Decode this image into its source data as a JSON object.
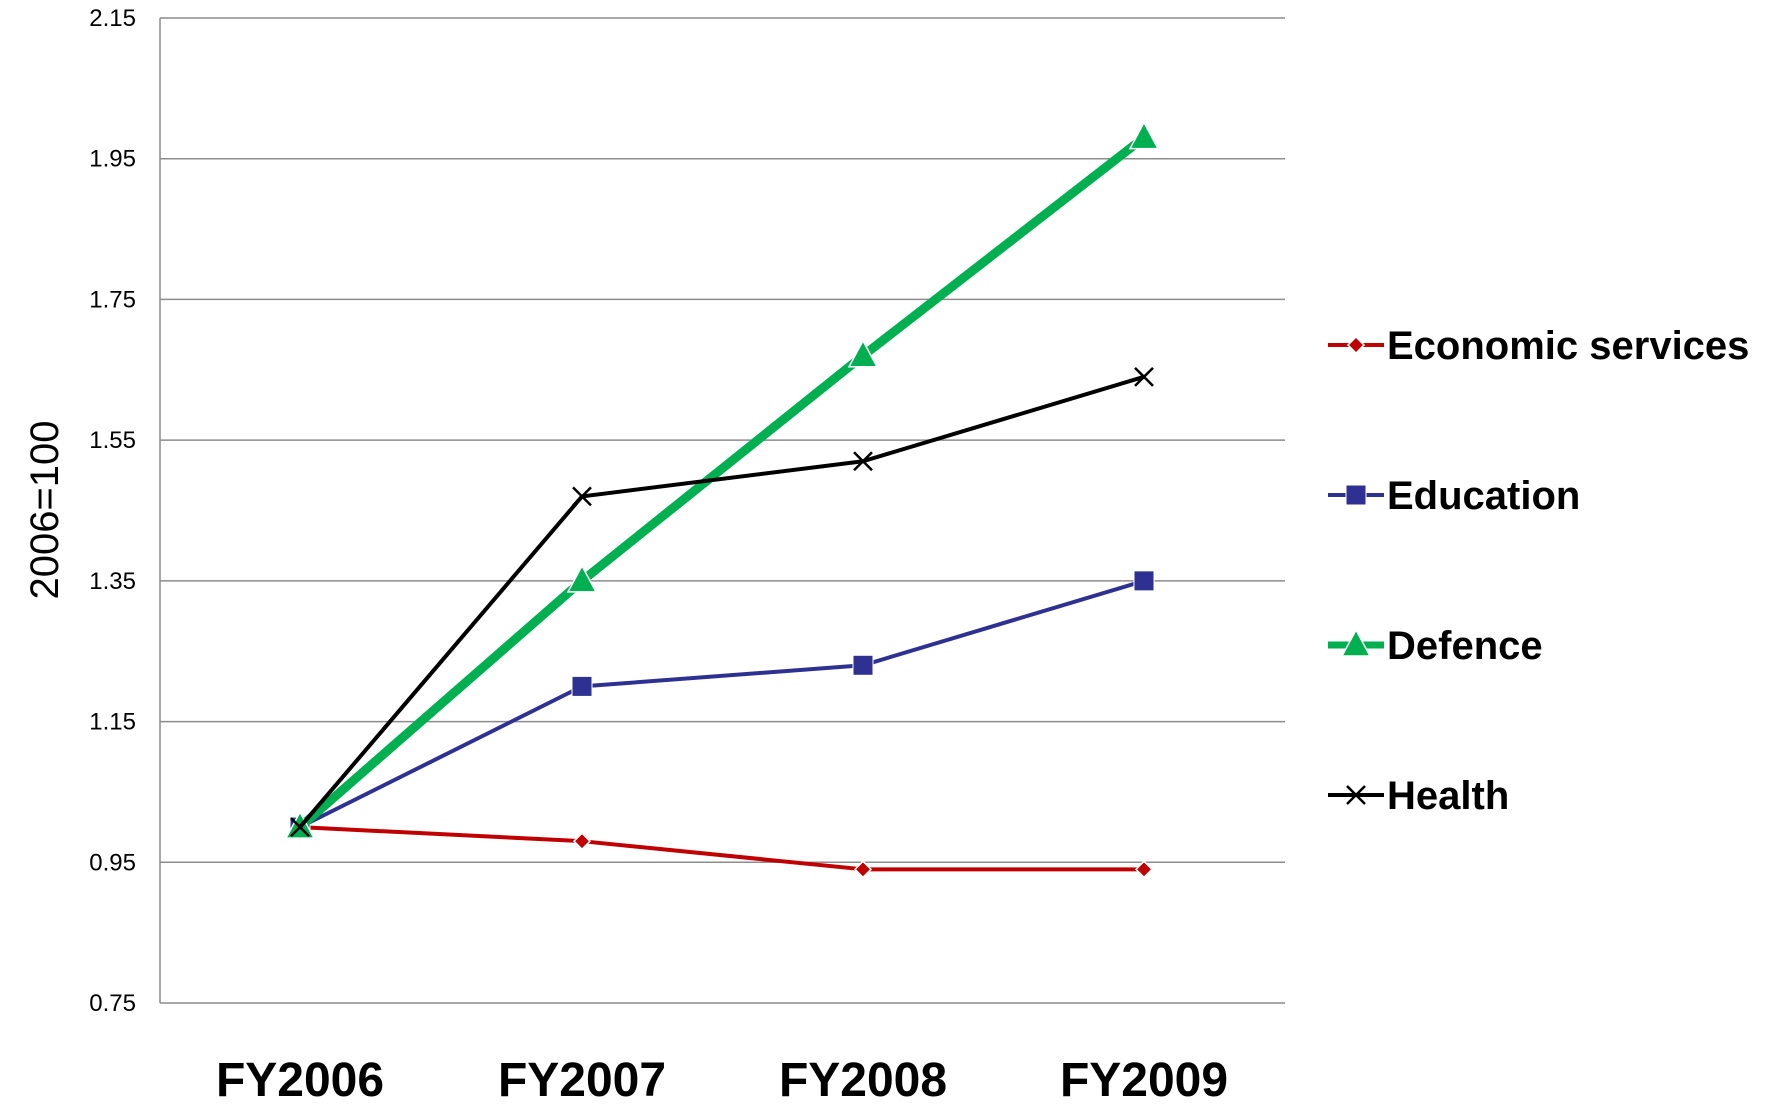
{
  "chart_data": {
    "type": "line",
    "title": "",
    "xlabel": "",
    "ylabel": "2006=100",
    "categories": [
      "FY2006",
      "FY2007",
      "FY2008",
      "FY2009"
    ],
    "ylim": [
      0.75,
      2.15
    ],
    "yticks": [
      "0.75",
      "0.95",
      "1.15",
      "1.35",
      "1.55",
      "1.75",
      "1.95",
      "2.15"
    ],
    "grid": true,
    "legend_position": "right",
    "series": [
      {
        "name": "Economic services",
        "values": [
          1.0,
          0.98,
          0.94,
          0.94
        ],
        "color": "#c00000",
        "marker": "diamond",
        "stroke": 4
      },
      {
        "name": "Education",
        "values": [
          1.0,
          1.2,
          1.23,
          1.35
        ],
        "color": "#2e3192",
        "marker": "square",
        "stroke": 4
      },
      {
        "name": "Defence",
        "values": [
          1.0,
          1.35,
          1.67,
          1.98
        ],
        "color": "#00b050",
        "marker": "triangle",
        "stroke": 9
      },
      {
        "name": "Health",
        "values": [
          1.0,
          1.47,
          1.52,
          1.64
        ],
        "color": "#000000",
        "marker": "x",
        "stroke": 4
      }
    ]
  }
}
